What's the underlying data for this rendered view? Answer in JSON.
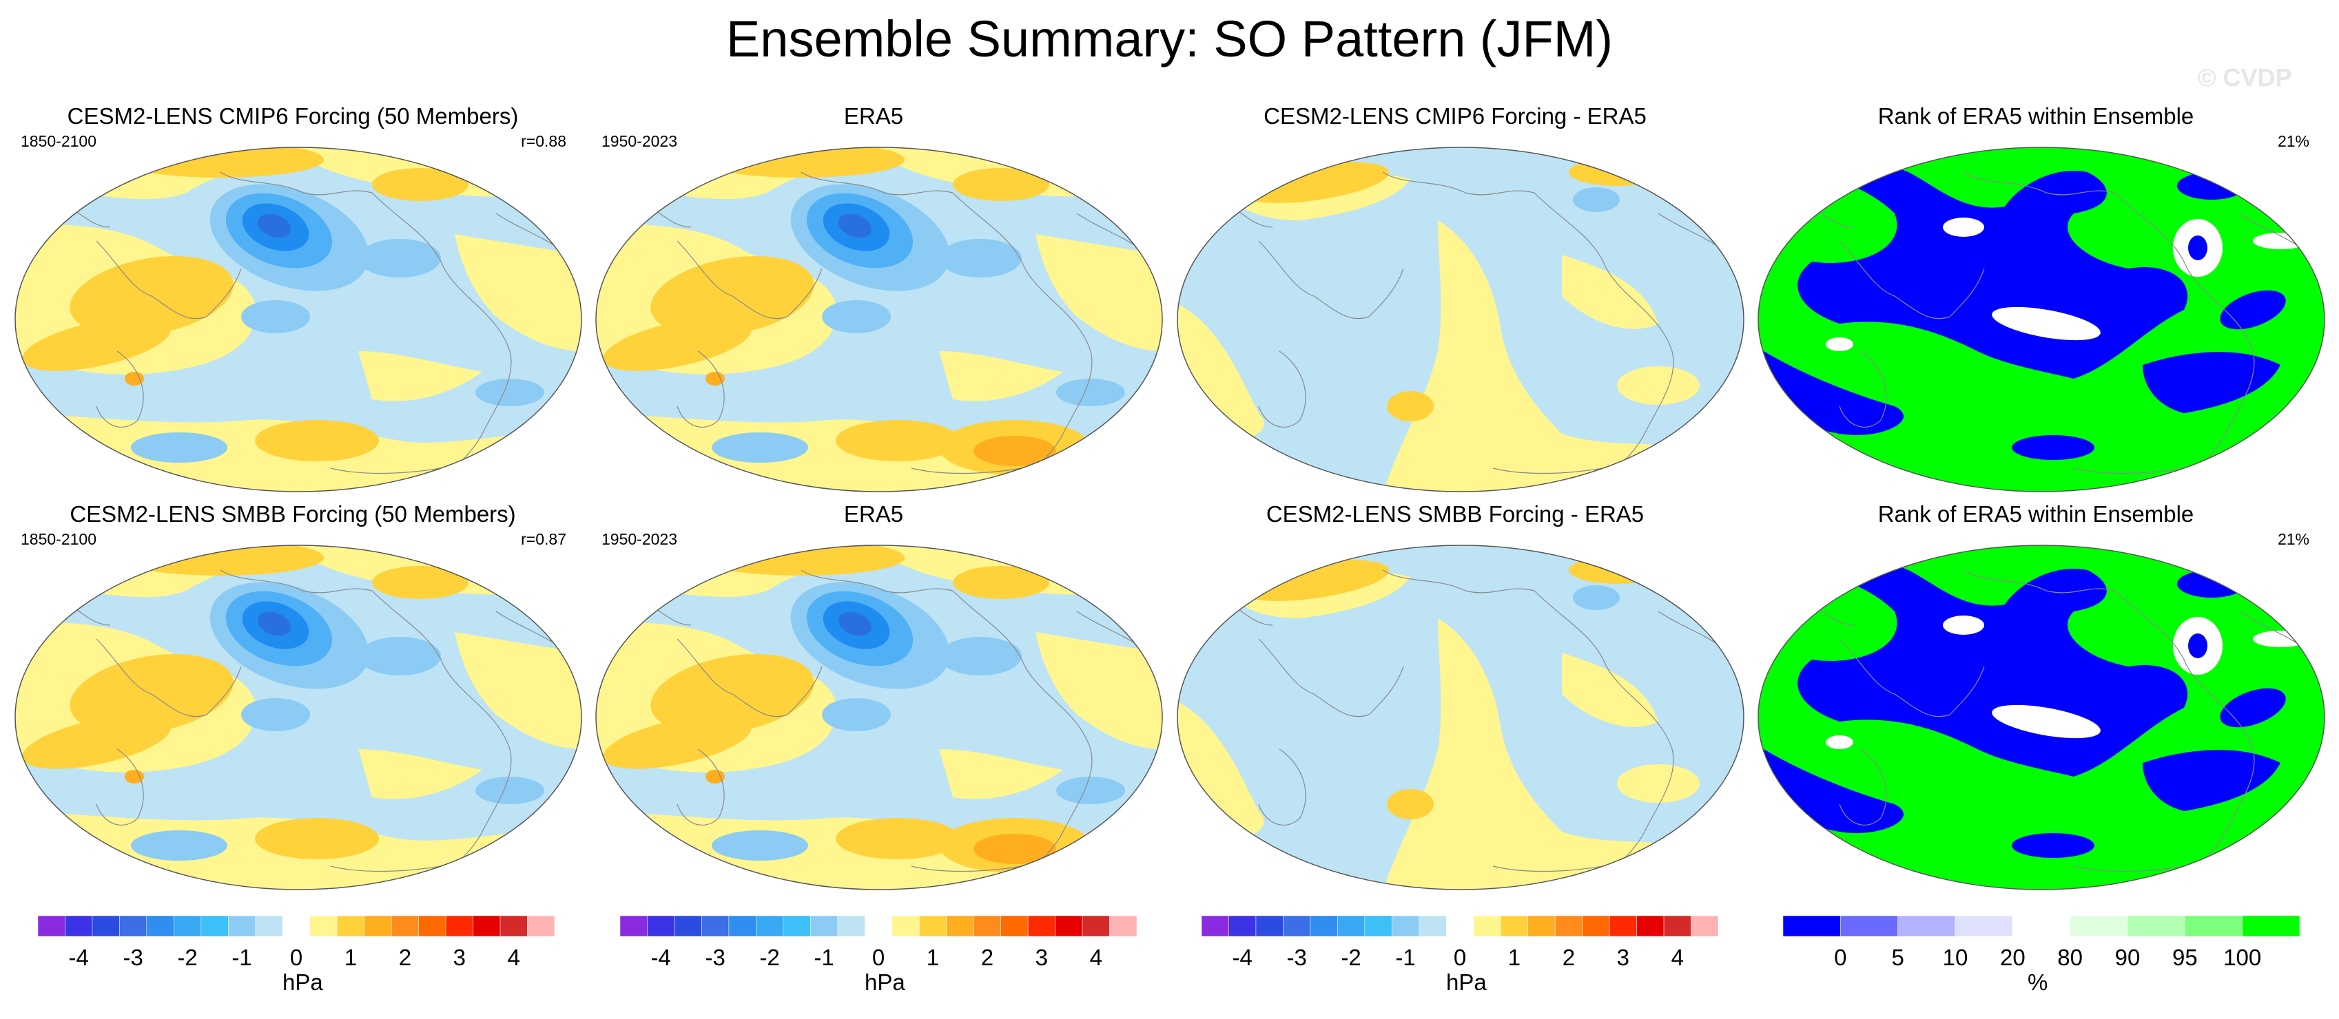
{
  "title": "Ensemble Summary: SO Pattern (JFM)",
  "watermark": "© CVDP",
  "colors": {
    "land_lines": "#8a8a8a",
    "pos_weak": "#fff68f",
    "pos_mid": "#ffd23c",
    "pos_strong": "#ffae20",
    "pos_max": "#ff8c1a",
    "neg_weak": "#bde3f5",
    "neg_mid": "#8ccbf3",
    "neg_strong": "#4fb0f5",
    "neg_max": "#1e8cf0",
    "neg_core": "#2a6fe0",
    "rank_low": "#0000ff",
    "rank_high": "#00ff00",
    "rank_mid": "#ffffff"
  },
  "rows": [
    {
      "panels": [
        {
          "title": "CESM2-LENS CMIP6 Forcing (50 Members)",
          "left": "1850-2100",
          "right": "r=0.88",
          "kind": "model"
        },
        {
          "title": "ERA5",
          "left": "1950-2023",
          "right": "",
          "kind": "obs"
        },
        {
          "title": "CESM2-LENS CMIP6 Forcing - ERA5",
          "left": "",
          "right": "",
          "kind": "diff"
        },
        {
          "title": "Rank of ERA5 within Ensemble",
          "left": "",
          "right": "21%",
          "kind": "rank"
        }
      ]
    },
    {
      "panels": [
        {
          "title": "CESM2-LENS SMBB Forcing (50 Members)",
          "left": "1850-2100",
          "right": "r=0.87",
          "kind": "model"
        },
        {
          "title": "ERA5",
          "left": "1950-2023",
          "right": "",
          "kind": "obs"
        },
        {
          "title": "CESM2-LENS SMBB Forcing - ERA5",
          "left": "",
          "right": "",
          "kind": "diff"
        },
        {
          "title": "Rank of ERA5 within Ensemble",
          "left": "",
          "right": "21%",
          "kind": "rank"
        }
      ]
    }
  ],
  "colorbars": [
    {
      "unit": "hPa",
      "ticks": [
        "-4",
        "-3",
        "-2",
        "-1",
        "0",
        "1",
        "2",
        "3",
        "4"
      ],
      "tick_values": [
        -4,
        -3,
        -2,
        -1,
        0,
        1,
        2,
        3,
        4
      ],
      "range": [
        -4.5,
        4.5
      ],
      "bins": [
        "#8a2be2",
        "#3c32e6",
        "#2c4be0",
        "#3c6ee8",
        "#2f8ef0",
        "#38a8f5",
        "#3cc0f8",
        "#8ccbf3",
        "#bde3f5",
        "#ffffff",
        "#fff68f",
        "#ffd23c",
        "#ffae20",
        "#ff8c1a",
        "#ff6a00",
        "#ff2a00",
        "#e60000",
        "#d42a2a",
        "#ffb3b3"
      ]
    },
    {
      "unit": "hPa",
      "ticks": [
        "-4",
        "-3",
        "-2",
        "-1",
        "0",
        "1",
        "2",
        "3",
        "4"
      ],
      "tick_values": [
        -4,
        -3,
        -2,
        -1,
        0,
        1,
        2,
        3,
        4
      ],
      "range": [
        -4.5,
        4.5
      ],
      "bins": [
        "#8a2be2",
        "#3c32e6",
        "#2c4be0",
        "#3c6ee8",
        "#2f8ef0",
        "#38a8f5",
        "#3cc0f8",
        "#8ccbf3",
        "#bde3f5",
        "#ffffff",
        "#fff68f",
        "#ffd23c",
        "#ffae20",
        "#ff8c1a",
        "#ff6a00",
        "#ff2a00",
        "#e60000",
        "#d42a2a",
        "#ffb3b3"
      ]
    },
    {
      "unit": "hPa",
      "ticks": [
        "-4",
        "-3",
        "-2",
        "-1",
        "0",
        "1",
        "2",
        "3",
        "4"
      ],
      "tick_values": [
        -4,
        -3,
        -2,
        -1,
        0,
        1,
        2,
        3,
        4
      ],
      "range": [
        -4.5,
        4.5
      ],
      "bins": [
        "#8a2be2",
        "#3c32e6",
        "#2c4be0",
        "#3c6ee8",
        "#2f8ef0",
        "#38a8f5",
        "#3cc0f8",
        "#8ccbf3",
        "#bde3f5",
        "#ffffff",
        "#fff68f",
        "#ffd23c",
        "#ffae20",
        "#ff8c1a",
        "#ff6a00",
        "#ff2a00",
        "#e60000",
        "#d42a2a",
        "#ffb3b3"
      ]
    },
    {
      "unit": "%",
      "ticks": [
        "0",
        "5",
        "10",
        "20",
        "80",
        "90",
        "95",
        "100"
      ],
      "bins": [
        "#0000ff",
        "#6a6aff",
        "#b3b3ff",
        "#e0e0ff",
        "#ffffff",
        "#e0ffe0",
        "#b3ffb3",
        "#7cff7c",
        "#00ff00"
      ]
    }
  ]
}
